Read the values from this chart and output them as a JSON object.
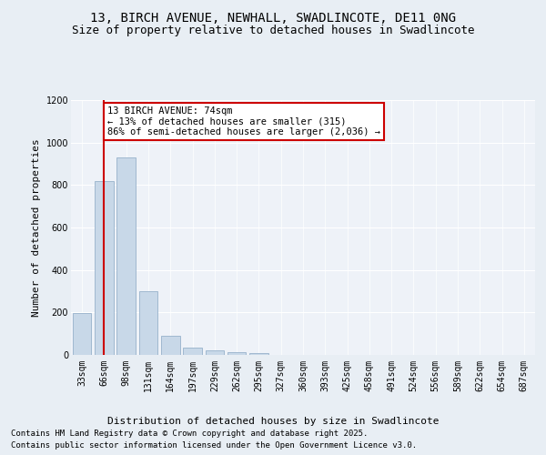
{
  "title_line1": "13, BIRCH AVENUE, NEWHALL, SWADLINCOTE, DE11 0NG",
  "title_line2": "Size of property relative to detached houses in Swadlincote",
  "xlabel": "Distribution of detached houses by size in Swadlincote",
  "ylabel": "Number of detached properties",
  "categories": [
    "33sqm",
    "66sqm",
    "98sqm",
    "131sqm",
    "164sqm",
    "197sqm",
    "229sqm",
    "262sqm",
    "295sqm",
    "327sqm",
    "360sqm",
    "393sqm",
    "425sqm",
    "458sqm",
    "491sqm",
    "524sqm",
    "556sqm",
    "589sqm",
    "622sqm",
    "654sqm",
    "687sqm"
  ],
  "values": [
    197,
    820,
    930,
    298,
    88,
    35,
    20,
    13,
    8,
    0,
    0,
    0,
    0,
    0,
    0,
    0,
    0,
    0,
    0,
    0,
    0
  ],
  "bar_color": "#c8d8e8",
  "bar_edge_color": "#a0b8d0",
  "vline_x": 1,
  "vline_color": "#cc0000",
  "annotation_line1": "13 BIRCH AVENUE: 74sqm",
  "annotation_line2": "← 13% of detached houses are smaller (315)",
  "annotation_line3": "86% of semi-detached houses are larger (2,036) →",
  "annotation_box_color": "#ffffff",
  "annotation_box_edge_color": "#cc0000",
  "ylim": [
    0,
    1200
  ],
  "yticks": [
    0,
    200,
    400,
    600,
    800,
    1000,
    1200
  ],
  "bg_color": "#e8eef4",
  "plot_bg_color": "#eef2f8",
  "footer_line1": "Contains HM Land Registry data © Crown copyright and database right 2025.",
  "footer_line2": "Contains public sector information licensed under the Open Government Licence v3.0.",
  "title_fontsize": 10,
  "subtitle_fontsize": 9,
  "axis_label_fontsize": 8,
  "tick_fontsize": 7,
  "annotation_fontsize": 7.5,
  "footer_fontsize": 6.5
}
